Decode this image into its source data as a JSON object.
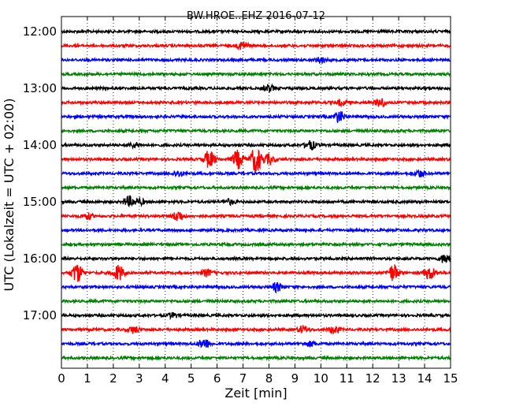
{
  "chart_data": {
    "type": "line",
    "title": "BW.HROE..EHZ 2016-07-12",
    "xlabel": "Zeit  [min]",
    "ylabel": "UTC (Lokalzeit = UTC + 02:00)",
    "xlim": [
      0,
      15
    ],
    "x_ticks": [
      "0",
      "1",
      "2",
      "3",
      "4",
      "5",
      "6",
      "7",
      "8",
      "9",
      "10",
      "11",
      "12",
      "13",
      "14",
      "15"
    ],
    "y_ticks": [
      "12:00",
      "13:00",
      "14:00",
      "15:00",
      "16:00",
      "17:00"
    ],
    "grid": "vertical dotted lines at each minute",
    "colors": [
      "#000000",
      "#ff0000",
      "#0000ff",
      "#008000"
    ],
    "rows_per_hour": 4,
    "traces": [
      {
        "start": "12:00",
        "color": "#000000",
        "events": []
      },
      {
        "start": "12:15",
        "color": "#ff0000",
        "events": [
          {
            "t": 7.0,
            "amp": 0.45
          }
        ]
      },
      {
        "start": "12:30",
        "color": "#0000ff",
        "events": [
          {
            "t": 10.0,
            "amp": 0.3
          }
        ]
      },
      {
        "start": "12:45",
        "color": "#008000",
        "events": []
      },
      {
        "start": "13:00",
        "color": "#000000",
        "events": [
          {
            "t": 8.0,
            "amp": 0.35
          }
        ]
      },
      {
        "start": "13:15",
        "color": "#ff0000",
        "events": [
          {
            "t": 10.8,
            "amp": 0.3
          },
          {
            "t": 12.3,
            "amp": 0.45
          }
        ]
      },
      {
        "start": "13:30",
        "color": "#0000ff",
        "events": [
          {
            "t": 10.7,
            "amp": 0.6
          }
        ]
      },
      {
        "start": "13:45",
        "color": "#008000",
        "events": []
      },
      {
        "start": "14:00",
        "color": "#000000",
        "events": [
          {
            "t": 9.6,
            "amp": 0.45
          },
          {
            "t": 2.8,
            "amp": 0.25
          }
        ]
      },
      {
        "start": "14:15",
        "color": "#ff0000",
        "events": [
          {
            "t": 5.7,
            "amp": 0.9
          },
          {
            "t": 6.8,
            "amp": 0.95
          },
          {
            "t": 7.5,
            "amp": 1.4
          },
          {
            "t": 8.0,
            "amp": 0.5
          }
        ]
      },
      {
        "start": "14:30",
        "color": "#0000ff",
        "events": [
          {
            "t": 4.5,
            "amp": 0.3
          },
          {
            "t": 13.8,
            "amp": 0.35
          }
        ]
      },
      {
        "start": "14:45",
        "color": "#008000",
        "events": []
      },
      {
        "start": "15:00",
        "color": "#000000",
        "events": [
          {
            "t": 2.6,
            "amp": 0.5
          },
          {
            "t": 3.0,
            "amp": 0.3
          },
          {
            "t": 6.5,
            "amp": 0.25
          }
        ]
      },
      {
        "start": "15:15",
        "color": "#ff0000",
        "events": [
          {
            "t": 1.0,
            "amp": 0.3
          },
          {
            "t": 4.5,
            "amp": 0.55
          }
        ]
      },
      {
        "start": "15:30",
        "color": "#0000ff",
        "events": []
      },
      {
        "start": "15:45",
        "color": "#008000",
        "events": []
      },
      {
        "start": "16:00",
        "color": "#000000",
        "events": [
          {
            "t": 14.8,
            "amp": 0.5
          }
        ]
      },
      {
        "start": "16:15",
        "color": "#ff0000",
        "events": [
          {
            "t": 0.6,
            "amp": 1.0
          },
          {
            "t": 2.2,
            "amp": 0.8
          },
          {
            "t": 5.6,
            "amp": 0.35
          },
          {
            "t": 12.8,
            "amp": 0.85
          },
          {
            "t": 14.2,
            "amp": 0.7
          }
        ]
      },
      {
        "start": "16:30",
        "color": "#0000ff",
        "events": [
          {
            "t": 8.3,
            "amp": 0.45
          }
        ]
      },
      {
        "start": "16:45",
        "color": "#008000",
        "events": []
      },
      {
        "start": "17:00",
        "color": "#000000",
        "events": [
          {
            "t": 4.3,
            "amp": 0.25
          }
        ]
      },
      {
        "start": "17:15",
        "color": "#ff0000",
        "events": [
          {
            "t": 2.8,
            "amp": 0.35
          },
          {
            "t": 9.3,
            "amp": 0.35
          },
          {
            "t": 10.5,
            "amp": 0.4
          }
        ]
      },
      {
        "start": "17:30",
        "color": "#0000ff",
        "events": [
          {
            "t": 5.5,
            "amp": 0.55
          },
          {
            "t": 9.6,
            "amp": 0.25
          }
        ]
      },
      {
        "start": "17:45",
        "color": "#008000",
        "events": []
      }
    ]
  }
}
